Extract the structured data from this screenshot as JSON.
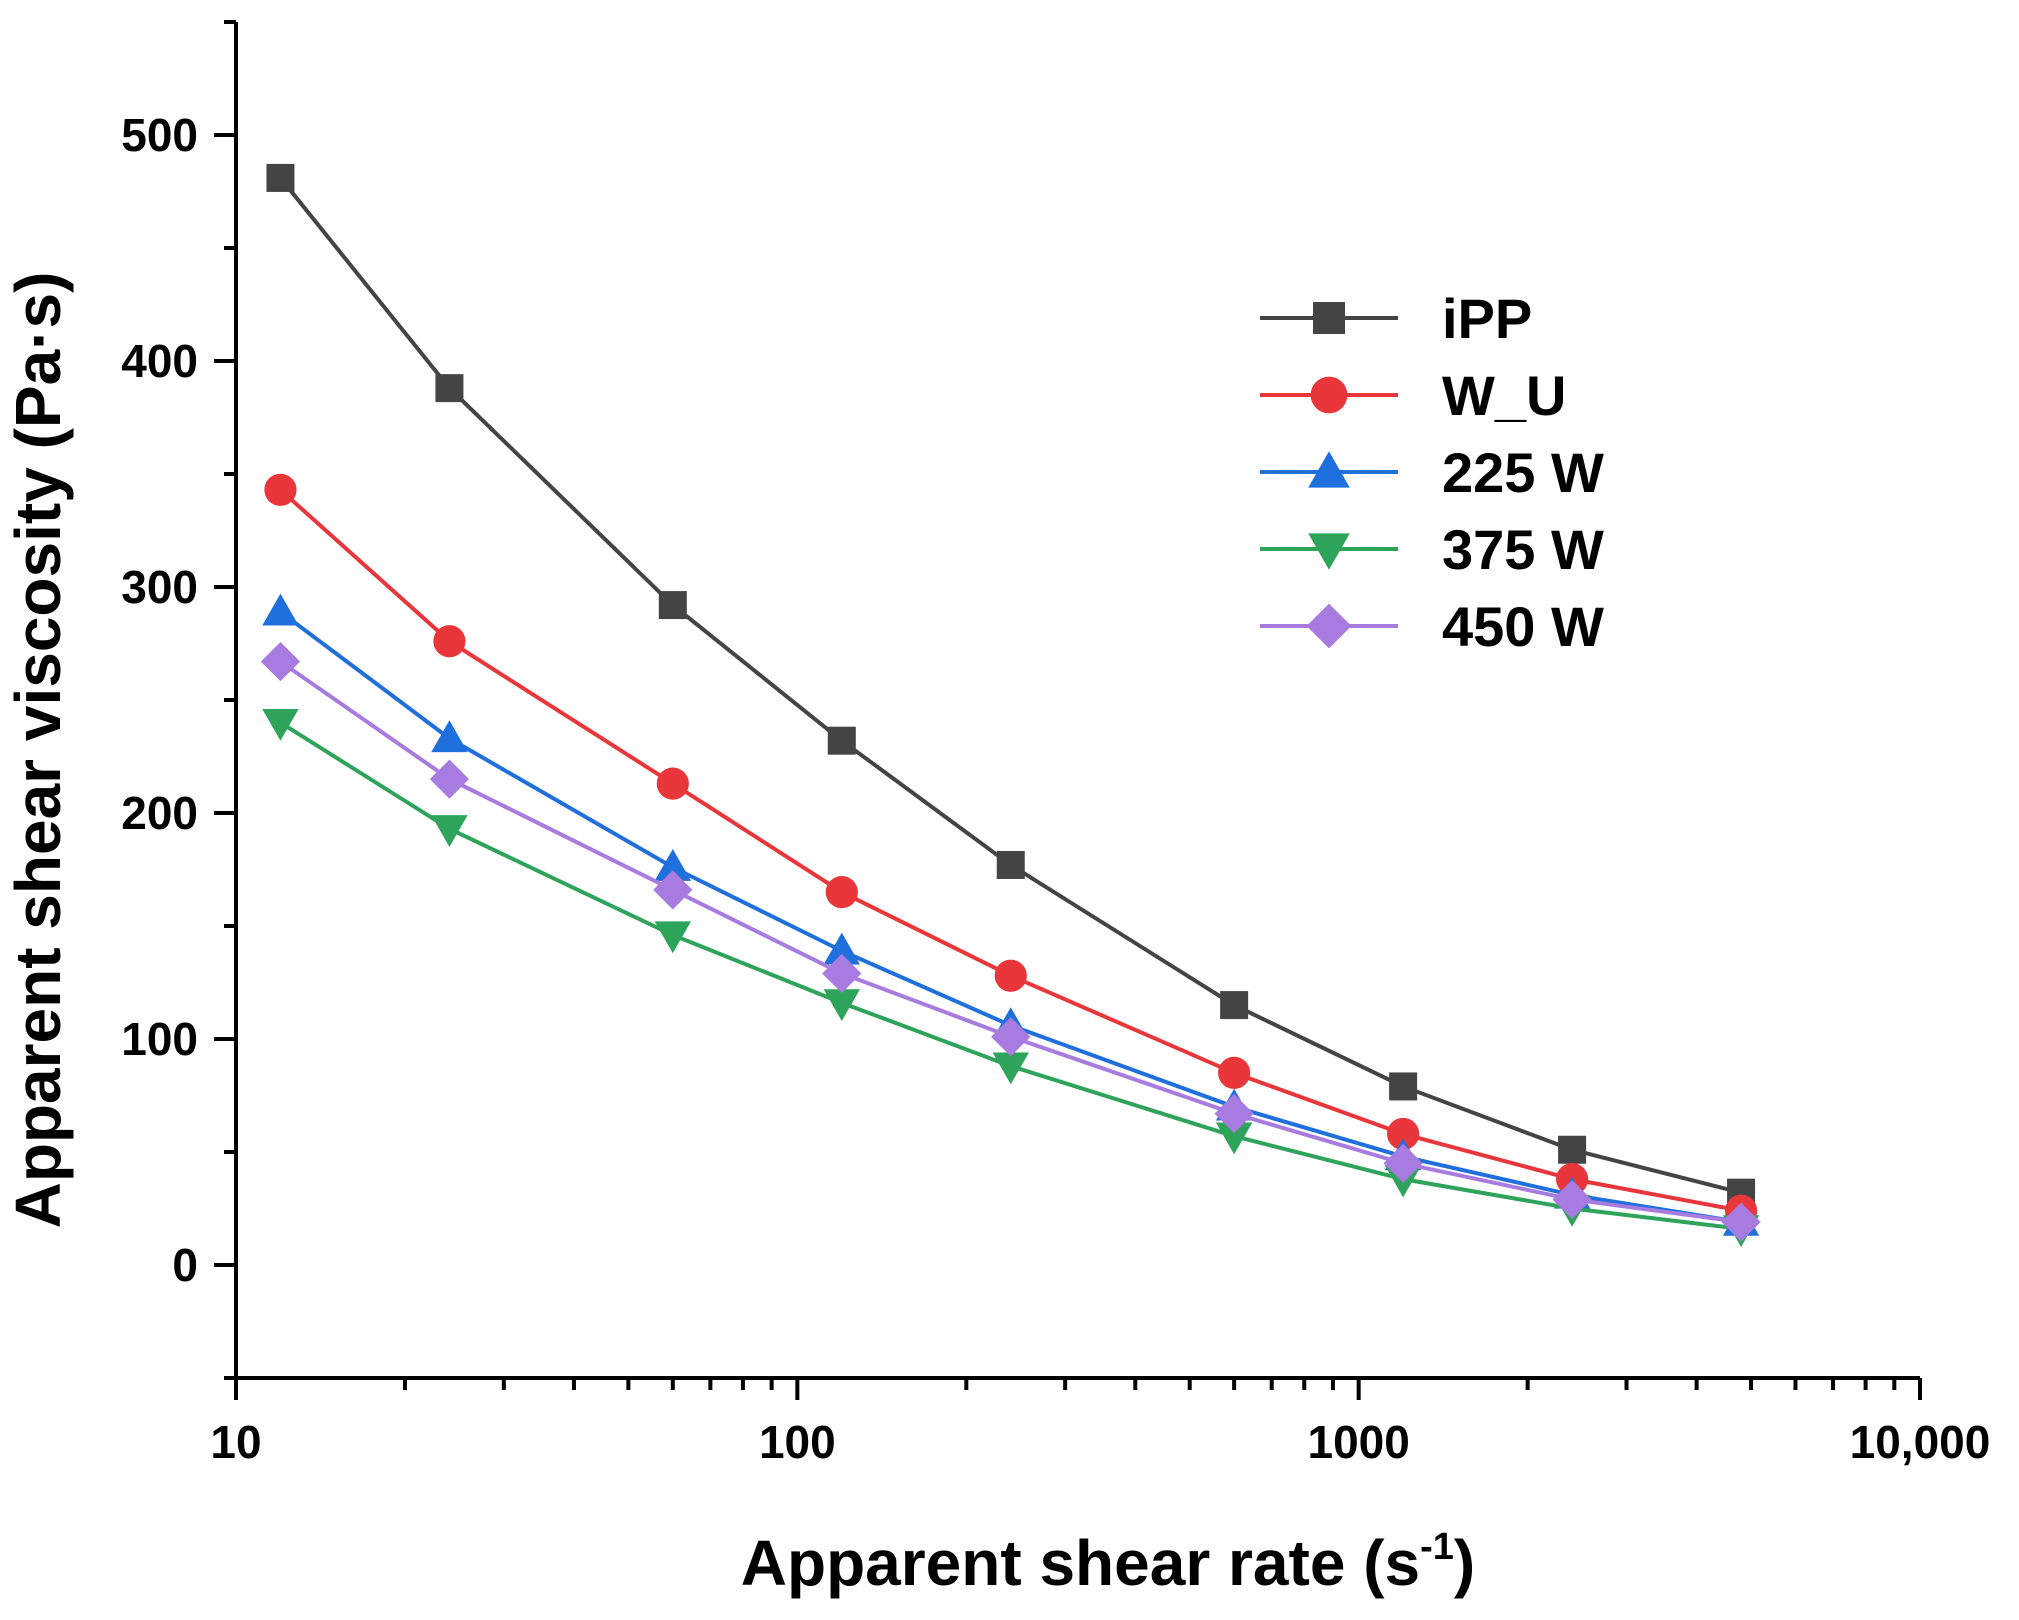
{
  "chart_data": {
    "type": "line",
    "xscale": "log",
    "xlabel": "Apparent shear rate (s",
    "xlabel_sup": "-1",
    "xlabel_close": ")",
    "ylabel": "Apparent shear viscosity (Pa·s)",
    "xlim": [
      10,
      10000
    ],
    "ylim": [
      -50,
      550
    ],
    "x_ticks": [
      10,
      100,
      1000,
      10000
    ],
    "x_tick_labels": [
      "10",
      "100",
      "1000",
      "10,000"
    ],
    "y_ticks": [
      0,
      100,
      200,
      300,
      400,
      500
    ],
    "y_tick_labels": [
      "0",
      "100",
      "200",
      "300",
      "400",
      "500"
    ],
    "legend_position": "upper-right",
    "x": [
      12,
      24,
      60,
      120,
      240,
      600,
      1200,
      2400,
      4800
    ],
    "series": [
      {
        "name": "iPP",
        "marker": "square",
        "color": "#444444",
        "values": [
          481,
          388,
          292,
          232,
          177,
          115,
          79,
          51,
          32
        ]
      },
      {
        "name": "W_U",
        "marker": "circle",
        "color": "#e8363a",
        "values": [
          343,
          276,
          213,
          165,
          128,
          85,
          58,
          38,
          24
        ]
      },
      {
        "name": "225 W",
        "marker": "triangle-up",
        "color": "#1f6fdc",
        "values": [
          289,
          233,
          176,
          139,
          106,
          70,
          48,
          31,
          19
        ]
      },
      {
        "name": "375 W",
        "marker": "triangle-down",
        "color": "#2ea35a",
        "values": [
          240,
          193,
          146,
          116,
          88,
          57,
          38,
          25,
          16
        ]
      },
      {
        "name": "450 W",
        "marker": "diamond",
        "color": "#a77bdf",
        "values": [
          267,
          215,
          166,
          129,
          101,
          67,
          45,
          29,
          19
        ]
      }
    ]
  }
}
